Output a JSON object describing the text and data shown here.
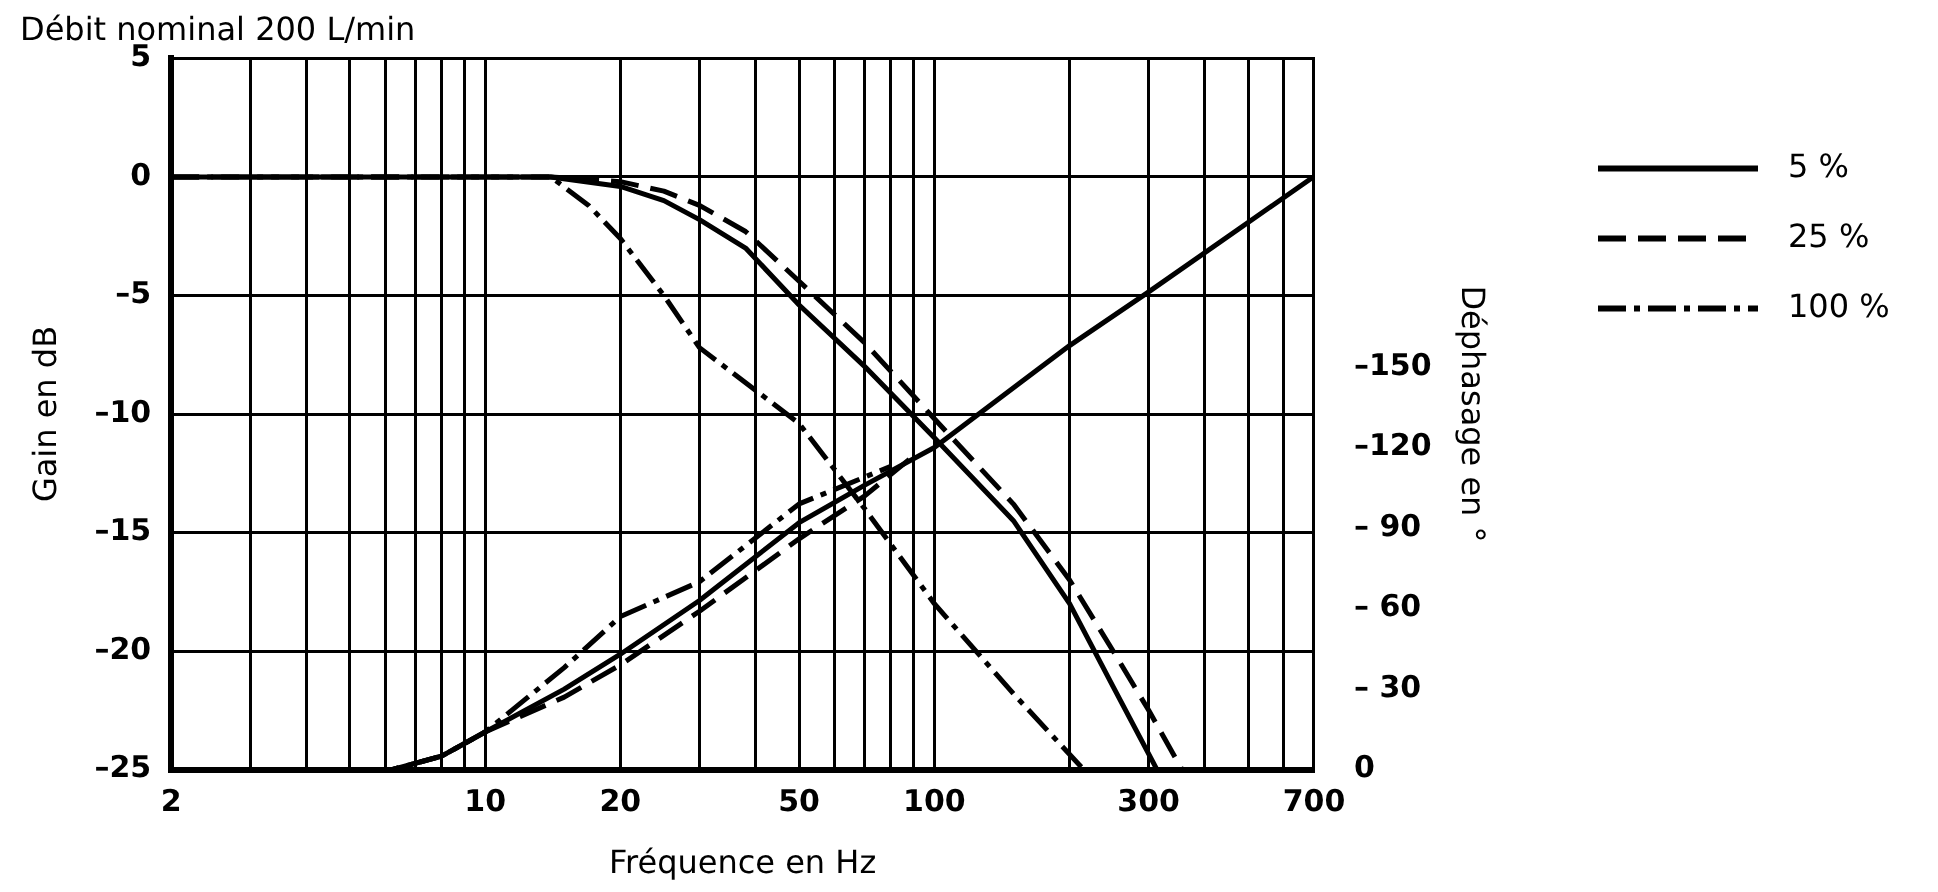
{
  "chart_data": {
    "type": "line",
    "title": "Débit nominal 200 L/min",
    "xlabel": "Fréquence en Hz",
    "ylabel": "Gain en dB",
    "y2label": "Déphasage en °",
    "log": "x",
    "grid": true,
    "legend": "right",
    "marker": "none",
    "xlim": [
      2,
      700
    ],
    "xticks": [
      2,
      {
        "value": 3,
        "label": null
      },
      {
        "value": 4,
        "label": null
      },
      {
        "value": 5,
        "label": null
      },
      {
        "value": 6,
        "label": null
      },
      {
        "value": 7,
        "label": null
      },
      {
        "value": 8,
        "label": null
      },
      {
        "value": 9,
        "label": null
      },
      10,
      20,
      {
        "value": 30,
        "label": null
      },
      {
        "value": 40,
        "label": null
      },
      50,
      {
        "value": 60,
        "label": null
      },
      {
        "value": 70,
        "label": null
      },
      {
        "value": 80,
        "label": null
      },
      {
        "value": 90,
        "label": null
      },
      100,
      {
        "value": 200,
        "label": null
      },
      300,
      {
        "value": 400,
        "label": null
      },
      {
        "value": 500,
        "label": null
      },
      {
        "value": 600,
        "label": null
      },
      700
    ],
    "ylim": [
      -25,
      5
    ],
    "yticks": [
      {
        "value": -25,
        "label": "–25"
      },
      {
        "value": -20,
        "label": "–20"
      },
      {
        "value": -15,
        "label": "–15"
      },
      {
        "value": -10,
        "label": "–10"
      },
      {
        "value": -5,
        "label": "–5"
      },
      0,
      5
    ],
    "y2lim": [
      0,
      -265
    ],
    "y2ticks": [
      0,
      {
        "value": -30,
        "label": "– 30"
      },
      {
        "value": -60,
        "label": "– 60"
      },
      {
        "value": -90,
        "label": "– 90"
      },
      {
        "value": -120,
        "label": "–120"
      },
      {
        "value": -150,
        "label": "–150"
      }
    ],
    "series": [
      {
        "name": "5 %",
        "color": "#000000",
        "line_style": "solid",
        "x": [
          2,
          14,
          20,
          25,
          30,
          38,
          50,
          70,
          100,
          150,
          200,
          250,
          313
        ],
        "values": [
          0,
          0,
          -0.4,
          -1,
          -1.8,
          -3,
          -5.4,
          -8,
          -11,
          -14.5,
          -18,
          -21.5,
          -25
        ]
      },
      {
        "name": "25 %",
        "color": "#000000",
        "line_style": "dashed",
        "x": [
          2,
          14,
          20,
          25,
          30,
          38,
          50,
          70,
          100,
          150,
          200,
          250,
          300,
          356
        ],
        "values": [
          0,
          0,
          -0.2,
          -0.6,
          -1.2,
          -2.3,
          -4.4,
          -7,
          -10.2,
          -13.8,
          -17,
          -20,
          -22.5,
          -25
        ]
      },
      {
        "name": "100 %",
        "color": "#000000",
        "line_style": "dashdot",
        "x": [
          2,
          14,
          17,
          20,
          25,
          30,
          40,
          50,
          70,
          100,
          150,
          215
        ],
        "values": [
          0,
          0,
          -1.2,
          -2.6,
          -5,
          -7.2,
          -9,
          -10.4,
          -14,
          -18,
          -21.8,
          -25
        ]
      },
      {
        "color": "#000000",
        "line_style": "solid",
        "axis": "y2",
        "x": [
          2,
          6.2,
          8,
          10,
          15,
          20,
          30,
          50,
          70,
          100,
          200,
          300,
          700
        ],
        "values": [
          0,
          0,
          -5,
          -14,
          -30,
          -43,
          -63,
          -92,
          -106,
          -120,
          -158,
          -178,
          -221
        ]
      },
      {
        "color": "#000000",
        "line_style": "dashed",
        "axis": "y2",
        "x": [
          2,
          6.2,
          8,
          10,
          15,
          20,
          30,
          50,
          70,
          90
        ],
        "values": [
          0,
          0,
          -5,
          -14,
          -27,
          -39,
          -59,
          -86,
          -102,
          -117
        ]
      },
      {
        "color": "#000000",
        "line_style": "dashdot",
        "axis": "y2",
        "x": [
          2,
          6.2,
          8,
          10,
          15,
          20,
          30,
          50,
          70,
          80
        ],
        "values": [
          0,
          0,
          -5,
          -14,
          -38,
          -57,
          -70,
          -99,
          -109,
          -113
        ]
      }
    ]
  }
}
